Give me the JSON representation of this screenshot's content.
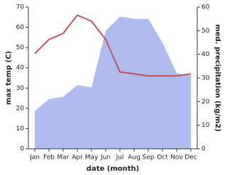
{
  "chart_data": {
    "type": "line",
    "xlabel": "date (month)",
    "ylabel": "max temp (C)",
    "y2label": "med. precipitation (kg/m2)",
    "categories": [
      "Jan",
      "Feb",
      "Mar",
      "Apr",
      "May",
      "Jun",
      "Jul",
      "Aug",
      "Sep",
      "Oct",
      "Nov",
      "Dec"
    ],
    "series": [
      {
        "kind": "line",
        "color": "#c0545a",
        "values": [
          47,
          54,
          57,
          66,
          63,
          54,
          38,
          37,
          36,
          36,
          36,
          37
        ]
      },
      {
        "kind": "area",
        "axis": "y2",
        "color": "#b0bbf0",
        "values": [
          16,
          21,
          22,
          27,
          26,
          50,
          56,
          55,
          55,
          45,
          32,
          31
        ]
      }
    ],
    "ylim": [
      0,
      70
    ],
    "yticks": [
      0,
      10,
      20,
      30,
      40,
      50,
      60,
      70
    ],
    "y2lim": [
      0,
      60
    ],
    "y2ticks": [
      0,
      10,
      20,
      30,
      40,
      50,
      60
    ]
  }
}
